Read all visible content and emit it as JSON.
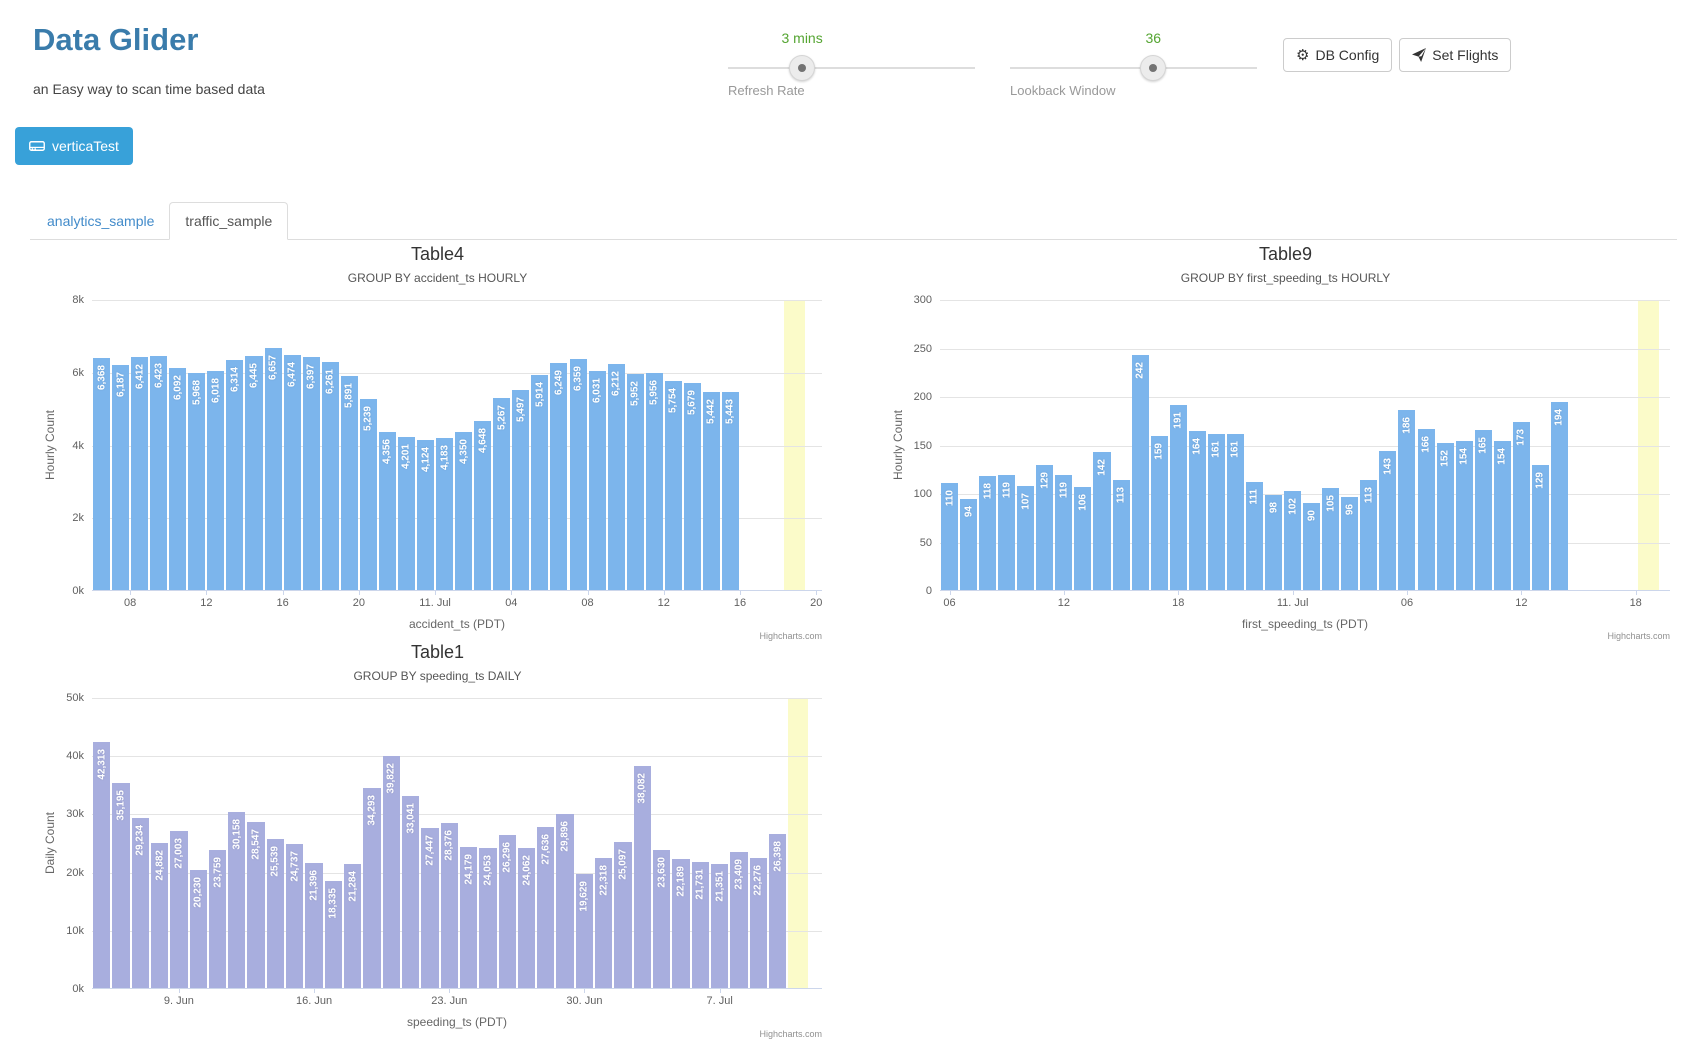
{
  "header": {
    "title": "Data Glider",
    "subtitle": "an Easy way to scan time based data",
    "refresh_rate": {
      "value": "3 mins",
      "label": "Refresh Rate",
      "position_pct": 30
    },
    "lookback_window": {
      "value": "36",
      "label": "Lookback Window",
      "position_pct": 58
    },
    "buttons": [
      {
        "label": "DB Config",
        "icon": "gear-icon"
      },
      {
        "label": "Set Flights",
        "icon": "paper-plane-icon"
      }
    ]
  },
  "database_button": {
    "label": "verticaTest",
    "icon": "hard-drive-icon"
  },
  "tabs": [
    {
      "label": "analytics_sample",
      "active": false
    },
    {
      "label": "traffic_sample",
      "active": true
    }
  ],
  "colors": {
    "title_blue": "#3a7cab",
    "link_blue": "#428bca",
    "slider_green": "#55a532",
    "bar_blue": "#7cb5ec",
    "bar_purple": "#a8aede",
    "plot_band_yellow": "#fbfbc9",
    "db_button_blue": "#38a1d9"
  },
  "chart_data": [
    {
      "type": "bar",
      "title": "Table4",
      "subtitle": "GROUP BY accident_ts HOURLY",
      "ylabel": "Hourly Count",
      "xlabel": "accident_ts (PDT)",
      "credit": "Highcharts.com",
      "ylim": [
        0,
        8000
      ],
      "y_tick_labels": [
        "8k",
        "6k",
        "4k",
        "2k",
        "0k"
      ],
      "bar_color": "#7cb5ec",
      "total_slots": 38.3,
      "plot_band": {
        "from": 36.3,
        "to": 37.4,
        "color": "#fbfbc9"
      },
      "x_ticks": [
        {
          "pos": 2,
          "label": "08"
        },
        {
          "pos": 6,
          "label": "12"
        },
        {
          "pos": 10,
          "label": "16"
        },
        {
          "pos": 14,
          "label": "20"
        },
        {
          "pos": 18,
          "label": "11. Jul"
        },
        {
          "pos": 22,
          "label": "04"
        },
        {
          "pos": 26,
          "label": "08"
        },
        {
          "pos": 30,
          "label": "12"
        },
        {
          "pos": 34,
          "label": "16"
        },
        {
          "pos": 38,
          "label": "20"
        }
      ],
      "values": [
        6368,
        6187,
        6412,
        6423,
        6092,
        5968,
        6018,
        6314,
        6445,
        6657,
        6474,
        6397,
        6261,
        5891,
        5239,
        4356,
        4201,
        4124,
        4183,
        4350,
        4648,
        5267,
        5497,
        5914,
        6249,
        6359,
        6031,
        6212,
        5952,
        5956,
        5754,
        5679,
        5442,
        5443
      ],
      "value_labels": [
        "6,368",
        "6,187",
        "6,412",
        "6,423",
        "6,092",
        "5,968",
        "6,018",
        "6,314",
        "6,445",
        "6,657",
        "6,474",
        "6,397",
        "6,261",
        "5,891",
        "5,239",
        "4,356",
        "4,201",
        "4,124",
        "4,183",
        "4,350",
        "4,648",
        "5,267",
        "5,497",
        "5,914",
        "6,249",
        "6,359",
        "6,031",
        "6,212",
        "5,952",
        "5,956",
        "5,754",
        "5,679",
        "5,442",
        "5,443"
      ]
    },
    {
      "type": "bar",
      "title": "Table9",
      "subtitle": "GROUP BY first_speeding_ts HOURLY",
      "ylabel": "Hourly Count",
      "xlabel": "first_speeding_ts (PDT)",
      "credit": "Highcharts.com",
      "ylim": [
        0,
        300
      ],
      "y_tick_labels": [
        "300",
        "250",
        "200",
        "150",
        "100",
        "50",
        "0"
      ],
      "bar_color": "#7cb5ec",
      "total_slots": 38.3,
      "plot_band": {
        "from": 36.6,
        "to": 37.7,
        "color": "#fbfbc9"
      },
      "x_ticks": [
        {
          "pos": 0.5,
          "label": "06"
        },
        {
          "pos": 6.5,
          "label": "12"
        },
        {
          "pos": 12.5,
          "label": "18"
        },
        {
          "pos": 18.5,
          "label": "11. Jul"
        },
        {
          "pos": 24.5,
          "label": "06"
        },
        {
          "pos": 30.5,
          "label": "12"
        },
        {
          "pos": 36.5,
          "label": "18"
        }
      ],
      "values": [
        110,
        94,
        118,
        119,
        107,
        129,
        119,
        106,
        142,
        113,
        242,
        159,
        191,
        164,
        161,
        161,
        111,
        98,
        102,
        90,
        105,
        96,
        113,
        143,
        186,
        166,
        152,
        154,
        165,
        154,
        173,
        129,
        194
      ],
      "value_labels": [
        "110",
        "94",
        "118",
        "119",
        "107",
        "129",
        "119",
        "106",
        "142",
        "113",
        "242",
        "159",
        "191",
        "164",
        "161",
        "161",
        "111",
        "98",
        "102",
        "90",
        "105",
        "96",
        "113",
        "143",
        "186",
        "166",
        "152",
        "154",
        "165",
        "154",
        "173",
        "129",
        "194"
      ]
    },
    {
      "type": "bar",
      "title": "Table1",
      "subtitle": "GROUP BY speeding_ts DAILY",
      "ylabel": "Daily Count",
      "xlabel": "speeding_ts (PDT)",
      "credit": "Highcharts.com",
      "ylim": [
        0,
        50000
      ],
      "y_tick_labels": [
        "50k",
        "40k",
        "30k",
        "20k",
        "10k",
        "0k"
      ],
      "bar_color": "#a8aede",
      "total_slots": 37.8,
      "plot_band": {
        "from": 36.05,
        "to": 37.05,
        "color": "#fbfbc9"
      },
      "x_ticks": [
        {
          "pos": 4.5,
          "label": "9. Jun"
        },
        {
          "pos": 11.5,
          "label": "16. Jun"
        },
        {
          "pos": 18.5,
          "label": "23. Jun"
        },
        {
          "pos": 25.5,
          "label": "30. Jun"
        },
        {
          "pos": 32.5,
          "label": "7. Jul"
        }
      ],
      "values": [
        42313,
        35195,
        29234,
        24882,
        27003,
        20230,
        23759,
        30158,
        28547,
        25539,
        24737,
        21396,
        18335,
        21284,
        34293,
        39822,
        33041,
        27447,
        28376,
        24179,
        24053,
        26296,
        24062,
        27636,
        29896,
        19629,
        22318,
        25097,
        38082,
        23630,
        22189,
        21731,
        21351,
        23409,
        22276,
        26398
      ],
      "value_labels": [
        "42,313",
        "35,195",
        "29,234",
        "24,882",
        "27,003",
        "20,230",
        "23,759",
        "30,158",
        "28,547",
        "25,539",
        "24,737",
        "21,396",
        "18,335",
        "21,284",
        "34,293",
        "39,822",
        "33,041",
        "27,447",
        "28,376",
        "24,179",
        "24,053",
        "26,296",
        "24,062",
        "27,636",
        "29,896",
        "19,629",
        "22,318",
        "25,097",
        "38,082",
        "23,630",
        "22,189",
        "21,731",
        "21,351",
        "23,409",
        "22,276",
        "26,398"
      ]
    }
  ]
}
